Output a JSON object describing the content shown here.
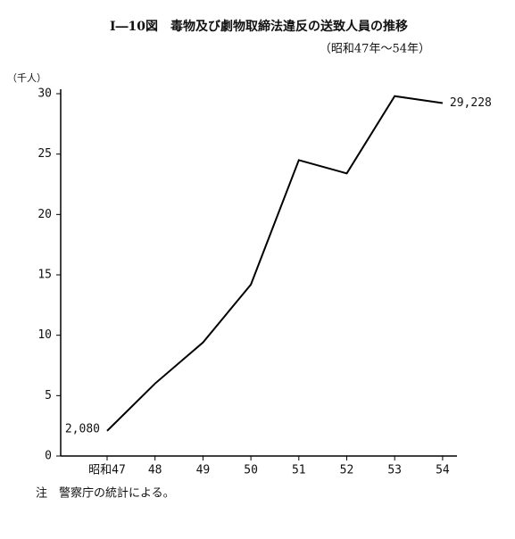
{
  "chart_data": {
    "type": "line",
    "title": "Ⅰ―10図　毒物及び劇物取締法違反の送致人員の推移",
    "subtitle": "（昭和47年～54年）",
    "y_label": "（千人）",
    "note": "注　警察庁の統計による。",
    "categories": [
      "昭和47",
      "48",
      "49",
      "50",
      "51",
      "52",
      "53",
      "54"
    ],
    "series": [
      {
        "name": "送致人員",
        "color": "#000000",
        "values": [
          2.08,
          6.0,
          9.4,
          14.2,
          24.5,
          23.4,
          29.8,
          29.228
        ],
        "value_labels": [
          "2,080",
          null,
          null,
          null,
          null,
          null,
          null,
          "29,228"
        ]
      }
    ],
    "ylim": [
      0,
      30
    ],
    "yticks": [
      0,
      5,
      10,
      15,
      20,
      25,
      30
    ],
    "grid": false
  }
}
